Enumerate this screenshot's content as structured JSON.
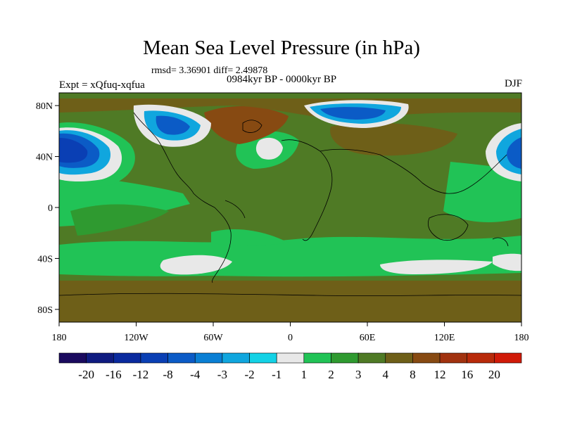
{
  "title": "Mean Sea Level Pressure (in hPa)",
  "stats": "rmsd= 3.36901 diff= 2.49878",
  "period": "0984kyr BP - 0000kyr BP",
  "experiment": "Expt = xQfuq-xqfua",
  "season": "DJF",
  "map": {
    "lon_ticks": [
      "180",
      "120W",
      "60W",
      "0",
      "60E",
      "120E",
      "180"
    ],
    "lat_ticks": [
      "80N",
      "40N",
      "0",
      "40S",
      "80S"
    ],
    "lon_values": [
      -180,
      -120,
      -60,
      0,
      60,
      120,
      180
    ],
    "lat_values": [
      80,
      40,
      0,
      -40,
      -80
    ]
  },
  "colorbar": {
    "labels": [
      "-20",
      "-16",
      "-12",
      "-8",
      "-4",
      "-3",
      "-2",
      "-1",
      "1",
      "2",
      "3",
      "4",
      "8",
      "12",
      "16",
      "20"
    ],
    "colors": [
      "#1a0a5e",
      "#0f1b80",
      "#0a2a9e",
      "#0a3fb4",
      "#0b5bc6",
      "#0a7fd4",
      "#10a6de",
      "#13d2e6",
      "#e8e8e8",
      "#21c356",
      "#2f9a30",
      "#4f7a25",
      "#6e5f18",
      "#874a12",
      "#a1320f",
      "#b82a0a",
      "#d01a08"
    ]
  }
}
